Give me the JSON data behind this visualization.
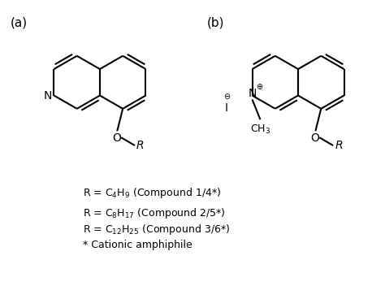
{
  "bg_color": "#ffffff",
  "label_a": "(a)",
  "label_b": "(b)",
  "line_color": "#000000",
  "line_width": 1.5,
  "font_size_label": 11,
  "font_size_text": 9,
  "text_lines": [
    "R = C$_4$H$_9$ (Compound 1/4*)",
    "R = C$_8$H$_{17}$ (Compound 2/5*)",
    "R = C$_{12}$H$_{25}$ (Compound 3/6*)",
    "* Cationic amphiphile"
  ]
}
